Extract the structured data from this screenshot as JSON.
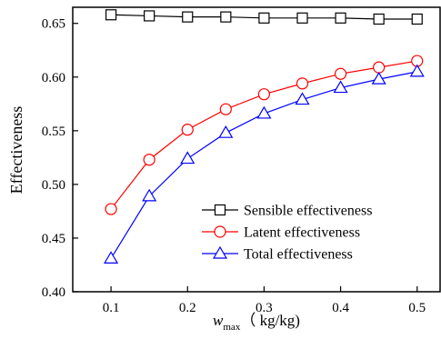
{
  "chart_data": {
    "type": "line",
    "title": "",
    "xlabel": {
      "var": "w",
      "sub": "max",
      "unit": "（ kg/kg)"
    },
    "ylabel": "Effectiveness",
    "xlim": [
      0.05,
      0.53
    ],
    "ylim": [
      0.4,
      0.665
    ],
    "xticks": [
      0.1,
      0.2,
      0.3,
      0.4,
      0.5
    ],
    "xtick_labels": [
      "0.1",
      "0.2",
      "0.3",
      "0.4",
      "0.5"
    ],
    "yticks": [
      0.4,
      0.45,
      0.5,
      0.55,
      0.6,
      0.65
    ],
    "ytick_labels": [
      "0.40",
      "0.45",
      "0.50",
      "0.55",
      "0.60",
      "0.65"
    ],
    "grid": false,
    "legend_position": "lower-right",
    "x": [
      0.1,
      0.15,
      0.2,
      0.25,
      0.3,
      0.35,
      0.4,
      0.45,
      0.5
    ],
    "series": [
      {
        "name": "Sensible effectiveness",
        "color": "#000000",
        "marker": "square",
        "values": [
          0.658,
          0.657,
          0.656,
          0.656,
          0.655,
          0.655,
          0.655,
          0.654,
          0.654
        ]
      },
      {
        "name": "Latent effectiveness",
        "color": "#ff0000",
        "marker": "circle",
        "values": [
          0.477,
          0.523,
          0.551,
          0.57,
          0.584,
          0.594,
          0.603,
          0.609,
          0.615
        ]
      },
      {
        "name": "Total effectiveness",
        "color": "#0000ff",
        "marker": "triangle",
        "values": [
          0.431,
          0.489,
          0.524,
          0.548,
          0.566,
          0.579,
          0.59,
          0.598,
          0.605
        ]
      }
    ]
  }
}
